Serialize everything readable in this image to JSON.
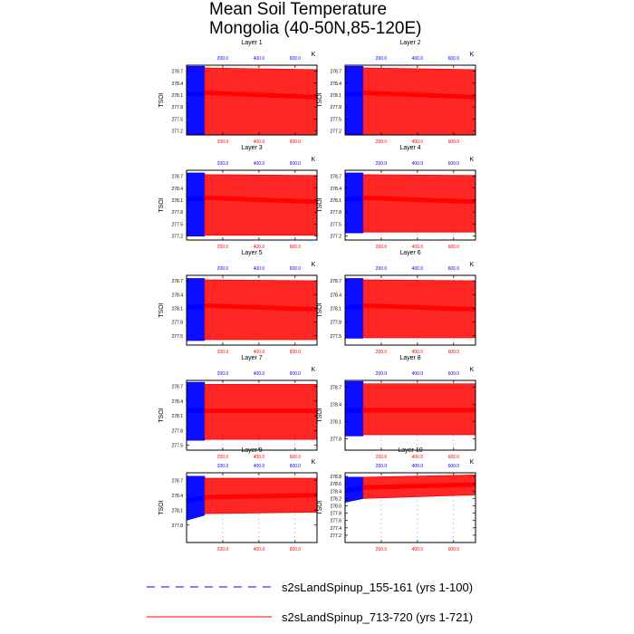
{
  "title": {
    "line1": "Mean Soil Temperature",
    "line2": "Mongolia (40-50N,85-120E)"
  },
  "colors": {
    "blue_series": "#0000ff",
    "red_series": "#ff0000",
    "axis": "#000000",
    "grid": "#999999"
  },
  "chart_data": [
    {
      "type": "line",
      "title": "Layer 1",
      "ylabel": "TSOI",
      "unit": "K",
      "y_ticks": [
        "278.7",
        "278.4",
        "278.1",
        "277.8",
        "277.5",
        "277.2"
      ],
      "ylim": [
        277.1,
        278.85
      ],
      "top_ticks": [
        "200.0",
        "400.0",
        "600.0"
      ],
      "bottom_ticks": [
        "200.0",
        "400.0",
        "600.0"
      ],
      "xlim": [
        0,
        721
      ],
      "series": [
        {
          "name": "s2sLandSpinup_155-161 (yrs 1-100)",
          "color": "#0000ff",
          "years": [
            1,
            100
          ],
          "x_axis": "top",
          "seasonal_max": [
            278.82,
            278.82
          ],
          "seasonal_min": [
            277.12,
            277.12
          ],
          "annual_mean": [
            278.13,
            278.13
          ]
        },
        {
          "name": "s2sLandSpinup_713-720 (yrs 1-721)",
          "color": "#ff0000",
          "years": [
            100,
            721
          ],
          "x_axis": "bottom",
          "seasonal_max": [
            278.78,
            278.74
          ],
          "seasonal_min": [
            277.1,
            277.1
          ],
          "annual_mean": [
            278.16,
            278.05
          ]
        }
      ]
    },
    {
      "type": "line",
      "title": "Layer 2",
      "ylabel": "TSOI",
      "unit": "K",
      "y_ticks": [
        "278.7",
        "278.4",
        "278.1",
        "277.8",
        "277.5",
        "277.2"
      ],
      "ylim": [
        277.1,
        278.85
      ],
      "top_ticks": [
        "200.0",
        "400.0",
        "600.0"
      ],
      "bottom_ticks": [
        "200.0",
        "400.0",
        "600.0"
      ],
      "xlim": [
        0,
        721
      ],
      "series": [
        {
          "name": "s2sLandSpinup_155-161 (yrs 1-100)",
          "color": "#0000ff",
          "years": [
            1,
            100
          ],
          "x_axis": "top",
          "seasonal_max": [
            278.82,
            278.82
          ],
          "seasonal_min": [
            277.12,
            277.12
          ],
          "annual_mean": [
            278.13,
            278.13
          ]
        },
        {
          "name": "s2sLandSpinup_713-720 (yrs 1-721)",
          "color": "#ff0000",
          "years": [
            100,
            721
          ],
          "x_axis": "bottom",
          "seasonal_max": [
            278.78,
            278.74
          ],
          "seasonal_min": [
            277.1,
            277.1
          ],
          "annual_mean": [
            278.16,
            278.05
          ]
        }
      ]
    },
    {
      "type": "line",
      "title": "Layer 3",
      "ylabel": "TSOI",
      "unit": "K",
      "y_ticks": [
        "278.7",
        "278.4",
        "278.1",
        "277.8",
        "277.5",
        "277.2"
      ],
      "ylim": [
        277.1,
        278.85
      ],
      "top_ticks": [
        "200.0",
        "400.0",
        "600.0"
      ],
      "bottom_ticks": [
        "200.0",
        "400.0",
        "600.0"
      ],
      "xlim": [
        0,
        721
      ],
      "series": [
        {
          "name": "s2sLandSpinup_155-161 (yrs 1-100)",
          "color": "#0000ff",
          "years": [
            1,
            100
          ],
          "x_axis": "top",
          "seasonal_max": [
            278.78,
            278.78
          ],
          "seasonal_min": [
            277.2,
            277.2
          ],
          "annual_mean": [
            278.13,
            278.13
          ]
        },
        {
          "name": "s2sLandSpinup_713-720 (yrs 1-721)",
          "color": "#ff0000",
          "years": [
            100,
            721
          ],
          "x_axis": "bottom",
          "seasonal_max": [
            278.74,
            278.72
          ],
          "seasonal_min": [
            277.22,
            277.22
          ],
          "annual_mean": [
            278.16,
            278.06
          ]
        }
      ]
    },
    {
      "type": "line",
      "title": "Layer 4",
      "ylabel": "TSOI",
      "unit": "K",
      "y_ticks": [
        "278.7",
        "278.4",
        "278.1",
        "277.8",
        "277.5",
        "277.2"
      ],
      "ylim": [
        277.1,
        278.85
      ],
      "top_ticks": [
        "200.0",
        "400.0",
        "600.0"
      ],
      "bottom_ticks": [
        "200.0",
        "400.0",
        "600.0"
      ],
      "xlim": [
        0,
        721
      ],
      "series": [
        {
          "name": "s2sLandSpinup_155-161 (yrs 1-100)",
          "color": "#0000ff",
          "years": [
            1,
            100
          ],
          "x_axis": "top",
          "seasonal_max": [
            278.78,
            278.78
          ],
          "seasonal_min": [
            277.28,
            277.28
          ],
          "annual_mean": [
            278.13,
            278.13
          ]
        },
        {
          "name": "s2sLandSpinup_713-720 (yrs 1-721)",
          "color": "#ff0000",
          "years": [
            100,
            721
          ],
          "x_axis": "bottom",
          "seasonal_max": [
            278.74,
            278.72
          ],
          "seasonal_min": [
            277.3,
            277.3
          ],
          "annual_mean": [
            278.16,
            278.06
          ]
        }
      ]
    },
    {
      "type": "line",
      "title": "Layer 5",
      "ylabel": "TSOI",
      "unit": "K",
      "y_ticks": [
        "278.7",
        "278.4",
        "278.1",
        "277.8",
        "277.5"
      ],
      "ylim": [
        277.3,
        278.82
      ],
      "top_ticks": [
        "200.0",
        "400.0",
        "600.0"
      ],
      "bottom_ticks": [
        "200.0",
        "400.0",
        "600.0"
      ],
      "xlim": [
        0,
        721
      ],
      "series": [
        {
          "name": "s2sLandSpinup_155-161 (yrs 1-100)",
          "color": "#0000ff",
          "years": [
            1,
            100
          ],
          "x_axis": "top",
          "seasonal_max": [
            278.75,
            278.75
          ],
          "seasonal_min": [
            277.4,
            277.4
          ],
          "annual_mean": [
            278.13,
            278.13
          ]
        },
        {
          "name": "s2sLandSpinup_713-720 (yrs 1-721)",
          "color": "#ff0000",
          "years": [
            100,
            721
          ],
          "x_axis": "bottom",
          "seasonal_max": [
            278.72,
            278.7
          ],
          "seasonal_min": [
            277.42,
            277.42
          ],
          "annual_mean": [
            278.16,
            278.08
          ]
        }
      ]
    },
    {
      "type": "line",
      "title": "Layer 6",
      "ylabel": "TSOI",
      "unit": "K",
      "y_ticks": [
        "278.7",
        "278.4",
        "278.1",
        "277.8",
        "277.5"
      ],
      "ylim": [
        277.3,
        278.82
      ],
      "top_ticks": [
        "200.0",
        "400.0",
        "600.0"
      ],
      "bottom_ticks": [
        "200.0",
        "400.0",
        "600.0"
      ],
      "xlim": [
        0,
        721
      ],
      "series": [
        {
          "name": "s2sLandSpinup_155-161 (yrs 1-100)",
          "color": "#0000ff",
          "years": [
            1,
            100
          ],
          "x_axis": "top",
          "seasonal_max": [
            278.75,
            278.75
          ],
          "seasonal_min": [
            277.45,
            277.45
          ],
          "annual_mean": [
            278.13,
            278.13
          ]
        },
        {
          "name": "s2sLandSpinup_713-720 (yrs 1-721)",
          "color": "#ff0000",
          "years": [
            100,
            721
          ],
          "x_axis": "bottom",
          "seasonal_max": [
            278.72,
            278.7
          ],
          "seasonal_min": [
            277.46,
            277.46
          ],
          "annual_mean": [
            278.16,
            278.08
          ]
        }
      ]
    },
    {
      "type": "line",
      "title": "Layer 7",
      "ylabel": "TSOI",
      "unit": "K",
      "y_ticks": [
        "278.7",
        "278.4",
        "278.1",
        "277.8",
        "277.5"
      ],
      "ylim": [
        277.4,
        278.82
      ],
      "top_ticks": [
        "200.0",
        "400.0",
        "600.0"
      ],
      "bottom_ticks": [
        "200.0",
        "400.0",
        "600.0"
      ],
      "xlim": [
        0,
        721
      ],
      "series": [
        {
          "name": "s2sLandSpinup_155-161 (yrs 1-100)",
          "color": "#0000ff",
          "years": [
            1,
            100
          ],
          "x_axis": "top",
          "seasonal_max": [
            278.78,
            278.78
          ],
          "seasonal_min": [
            277.6,
            277.6
          ],
          "annual_mean": [
            278.2,
            278.2
          ]
        },
        {
          "name": "s2sLandSpinup_713-720 (yrs 1-721)",
          "color": "#ff0000",
          "years": [
            100,
            721
          ],
          "x_axis": "bottom",
          "seasonal_max": [
            278.74,
            278.74
          ],
          "seasonal_min": [
            277.62,
            277.62
          ],
          "annual_mean": [
            278.2,
            278.2
          ]
        }
      ]
    },
    {
      "type": "line",
      "title": "Layer 8",
      "ylabel": "TSOI",
      "unit": "K",
      "y_ticks": [
        "278.7",
        "278.4",
        "278.1",
        "277.8"
      ],
      "ylim": [
        277.6,
        278.82
      ],
      "top_ticks": [
        "200.0",
        "400.0",
        "600.0"
      ],
      "bottom_ticks": [
        "200.0",
        "400.0",
        "600.0"
      ],
      "xlim": [
        0,
        721
      ],
      "series": [
        {
          "name": "s2sLandSpinup_155-161 (yrs 1-100)",
          "color": "#0000ff",
          "years": [
            1,
            100
          ],
          "x_axis": "top",
          "seasonal_max": [
            278.8,
            278.8
          ],
          "seasonal_min": [
            277.85,
            277.85
          ],
          "annual_mean": [
            278.3,
            278.3
          ]
        },
        {
          "name": "s2sLandSpinup_713-720 (yrs 1-721)",
          "color": "#ff0000",
          "years": [
            100,
            721
          ],
          "x_axis": "bottom",
          "seasonal_max": [
            278.76,
            278.76
          ],
          "seasonal_min": [
            277.87,
            277.87
          ],
          "annual_mean": [
            278.3,
            278.3
          ]
        }
      ]
    },
    {
      "type": "line",
      "title": "Layer 9",
      "ylabel": "TSOI",
      "unit": "K",
      "y_ticks": [
        "278.7",
        "278.4",
        "278.1",
        "277.8"
      ],
      "ylim": [
        277.45,
        278.85
      ],
      "top_ticks": [
        "200.0",
        "400.0",
        "600.0"
      ],
      "bottom_ticks": [
        "200.0",
        "400.0",
        "600.0"
      ],
      "xlim": [
        0,
        721
      ],
      "series": [
        {
          "name": "s2sLandSpinup_155-161 (yrs 1-100)",
          "color": "#0000ff",
          "years": [
            1,
            100
          ],
          "x_axis": "top",
          "seasonal_max": [
            278.78,
            278.78
          ],
          "seasonal_min": [
            277.9,
            278.0
          ],
          "annual_mean": [
            278.3,
            278.35
          ]
        },
        {
          "name": "s2sLandSpinup_713-720 (yrs 1-721)",
          "color": "#ff0000",
          "years": [
            100,
            721
          ],
          "x_axis": "bottom",
          "seasonal_max": [
            278.74,
            278.74
          ],
          "seasonal_min": [
            278.03,
            278.06
          ],
          "annual_mean": [
            278.36,
            278.4
          ]
        }
      ]
    },
    {
      "type": "line",
      "title": "Layer 10",
      "ylabel": "TSOI",
      "unit": "K",
      "y_ticks": [
        "278.8",
        "278.6",
        "278.4",
        "278.2",
        "278.0",
        "277.8",
        "277.6",
        "277.4",
        "277.2"
      ],
      "ylim": [
        277.0,
        278.9
      ],
      "top_ticks": [
        "200.0",
        "400.0",
        "600.0"
      ],
      "bottom_ticks": [
        "200.0",
        "400.0",
        "600.0"
      ],
      "xlim": [
        0,
        721
      ],
      "series": [
        {
          "name": "s2sLandSpinup_155-161 (yrs 1-100)",
          "color": "#0000ff",
          "years": [
            1,
            100
          ],
          "x_axis": "top",
          "seasonal_max": [
            278.78,
            278.78
          ],
          "seasonal_min": [
            278.1,
            278.2
          ],
          "annual_mean": [
            278.42,
            278.48
          ]
        },
        {
          "name": "s2sLandSpinup_713-720 (yrs 1-721)",
          "color": "#ff0000",
          "years": [
            100,
            721
          ],
          "x_axis": "bottom",
          "seasonal_max": [
            278.78,
            278.84
          ],
          "seasonal_min": [
            278.2,
            278.3
          ],
          "annual_mean": [
            278.5,
            278.58
          ]
        }
      ]
    }
  ],
  "legend": [
    {
      "label": "s2sLandSpinup_155-161 (yrs 1-100)",
      "color": "#0000ff",
      "style": "dashed"
    },
    {
      "label": "s2sLandSpinup_713-720 (yrs 1-721)",
      "color": "#ff0000",
      "style": "solid"
    }
  ]
}
